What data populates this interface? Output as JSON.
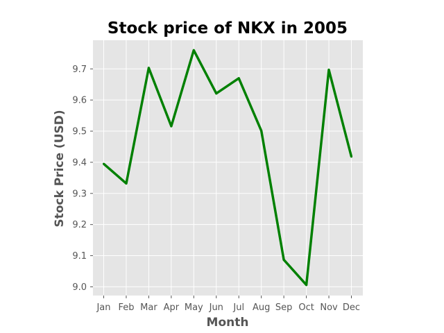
{
  "chart_data": {
    "type": "line",
    "title": "Stock price of NKX in 2005",
    "xlabel": "Month",
    "ylabel": "Stock Price (USD)",
    "categories": [
      "Jan",
      "Feb",
      "Mar",
      "Apr",
      "May",
      "Jun",
      "Jul",
      "Aug",
      "Sep",
      "Oct",
      "Nov",
      "Dec"
    ],
    "series": [
      {
        "values": [
          9.395,
          9.332,
          9.703,
          9.516,
          9.76,
          9.621,
          9.67,
          9.501,
          9.087,
          9.006,
          9.697,
          9.418
        ]
      }
    ],
    "ylim": [
      8.972,
      9.792
    ],
    "yticks": [
      "9.0",
      "9.1",
      "9.2",
      "9.3",
      "9.4",
      "9.5",
      "9.6",
      "9.7"
    ],
    "grid": true,
    "line_color": "#008000",
    "background_color": "#e5e5e5",
    "grid_color": "#ffffff"
  }
}
